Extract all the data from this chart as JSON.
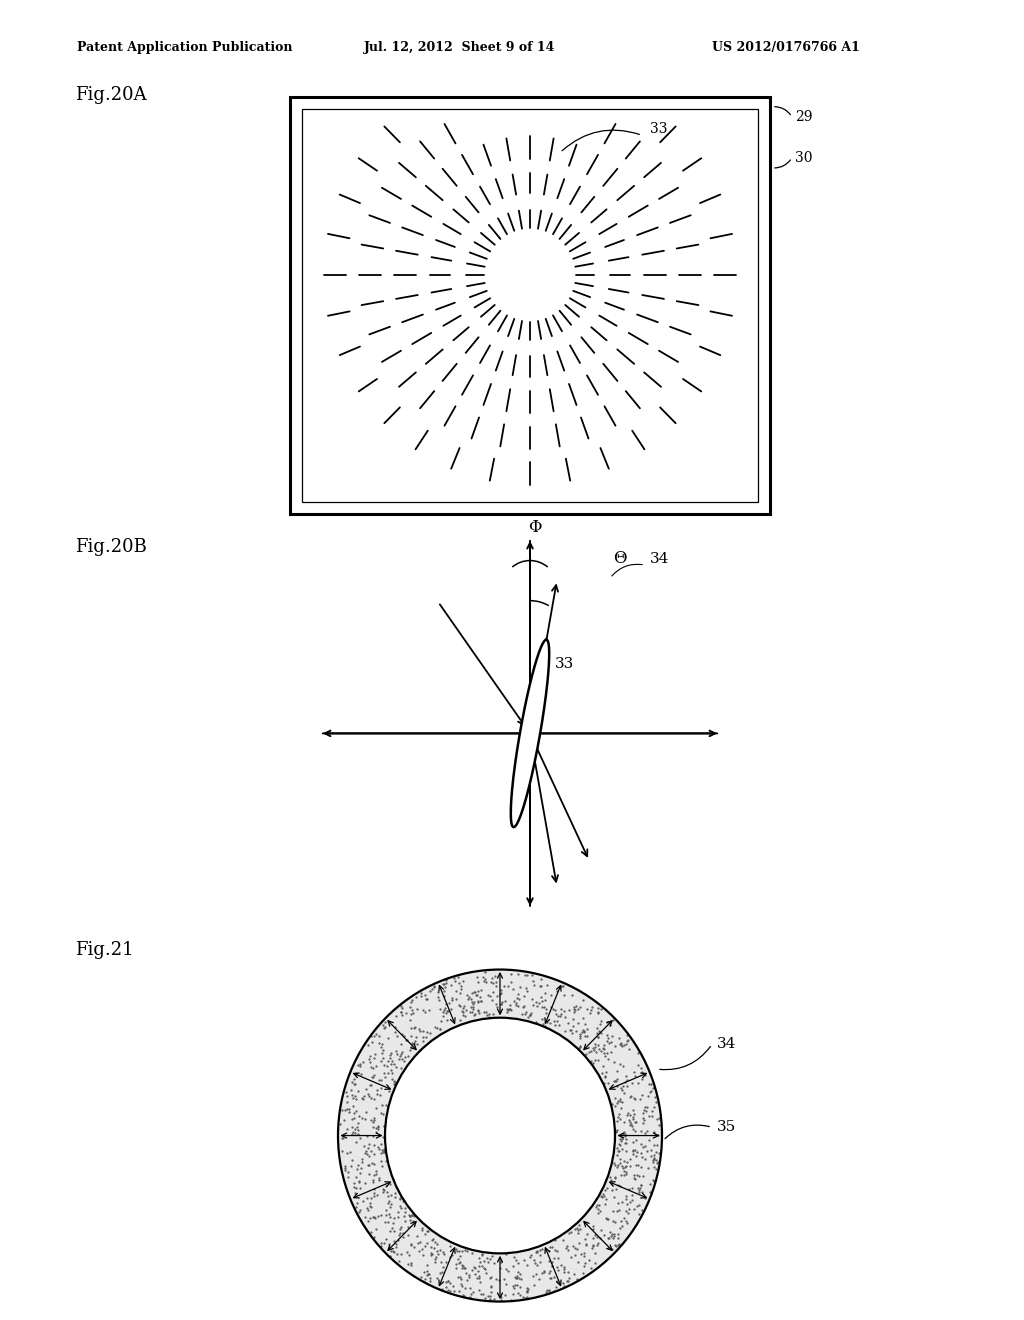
{
  "header_left": "Patent Application Publication",
  "header_mid": "Jul. 12, 2012  Sheet 9 of 14",
  "header_right": "US 2012/0176766 A1",
  "fig20A_label": "Fig.20A",
  "fig20B_label": "Fig.20B",
  "fig21_label": "Fig.21",
  "label_29": "29",
  "label_30": "30",
  "label_33": "33",
  "label_34": "34",
  "label_35": "35",
  "label_phi": "Φ",
  "label_theta": "Θ",
  "bg_color": "#ffffff",
  "line_color": "#000000"
}
